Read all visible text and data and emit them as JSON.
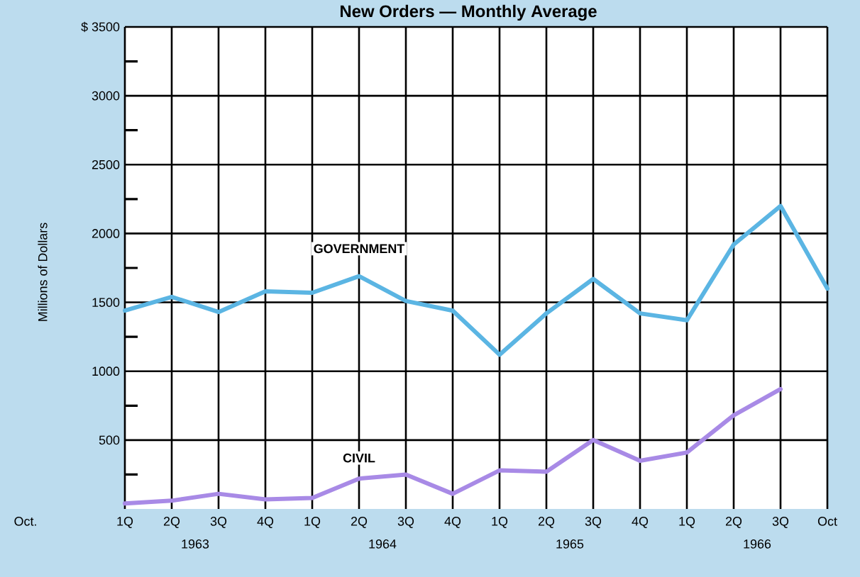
{
  "chart_data": {
    "type": "line",
    "title": "New Orders — Monthly Average",
    "ylabel": "Millions of Dollars",
    "categories": [
      "1Q",
      "2Q",
      "3Q",
      "4Q",
      "1Q",
      "2Q",
      "3Q",
      "4Q",
      "1Q",
      "2Q",
      "3Q",
      "4Q",
      "1Q",
      "2Q",
      "3Q",
      "Oct"
    ],
    "series": [
      {
        "name": "GOVERNMENT",
        "color": "#5bb5e3",
        "values": [
          1440,
          1540,
          1430,
          1580,
          1570,
          1690,
          1510,
          1440,
          1120,
          1420,
          1670,
          1420,
          1370,
          1920,
          2200,
          1600
        ]
      },
      {
        "name": "CIVIL",
        "color": "#a88ae6",
        "values": [
          40,
          60,
          110,
          70,
          80,
          220,
          250,
          110,
          280,
          270,
          500,
          350,
          410,
          680,
          870,
          null
        ]
      }
    ],
    "ylim": [
      0,
      3500
    ],
    "yticks": [
      {
        "value": 250,
        "label": null
      },
      500,
      {
        "value": 750,
        "label": null
      },
      1000,
      {
        "value": 1250,
        "label": null
      },
      1500,
      {
        "value": 1750,
        "label": null
      },
      2000,
      {
        "value": 2250,
        "label": null
      },
      2500,
      {
        "value": 2750,
        "label": null
      },
      3000,
      {
        "value": 3250,
        "label": null
      },
      {
        "value": 3500,
        "label": "$ 3500"
      }
    ],
    "grid": true,
    "annotations": [
      "Oct.",
      "1963",
      "1964",
      "1965",
      "1966"
    ]
  }
}
